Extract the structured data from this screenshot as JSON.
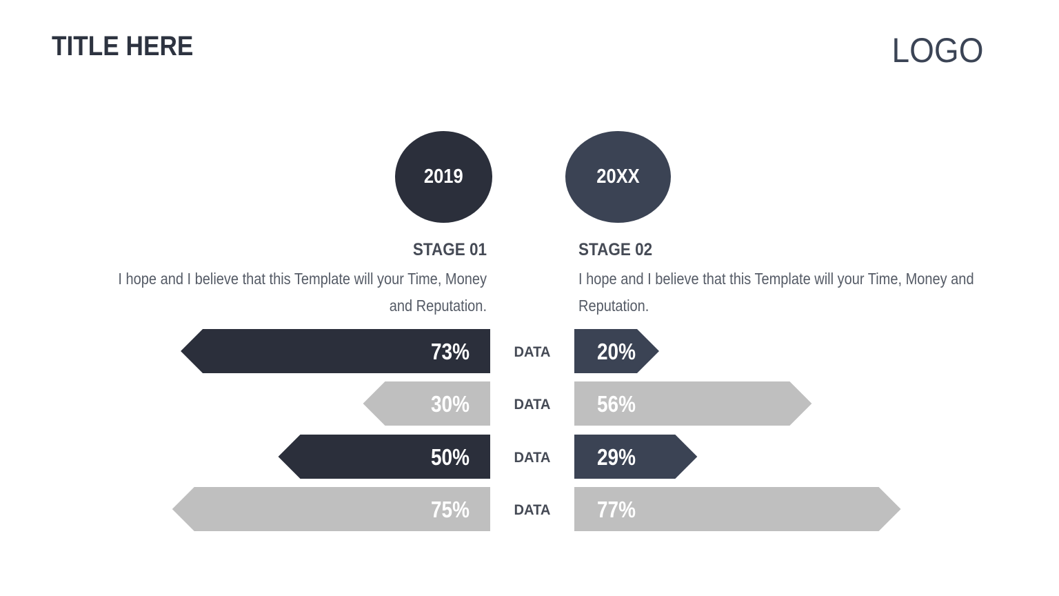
{
  "header": {
    "title": "TITLE HERE",
    "logo": "LOGO"
  },
  "stages": [
    {
      "year": "2019",
      "title": "STAGE 01",
      "description": "I hope and I believe that this Template will your Time, Money and Reputation."
    },
    {
      "year": "20XX",
      "title": "STAGE 02",
      "description": "I hope and I believe that this Template will your Time, Money and Reputation."
    }
  ],
  "colors": {
    "dark_left": "#2b2f3b",
    "dark_right": "#3b4354",
    "light": "#bfbfbf",
    "text": "#454a55"
  },
  "chart_data": {
    "type": "bar",
    "orientation": "horizontal-diverging",
    "categories": [
      "DATA",
      "DATA",
      "DATA",
      "DATA"
    ],
    "series": [
      {
        "values": [
          73,
          30,
          50,
          75
        ],
        "labels": [
          "73%",
          "30%",
          "50%",
          "75%"
        ]
      },
      {
        "values": [
          20,
          56,
          29,
          77
        ],
        "labels": [
          "20%",
          "56%",
          "29%",
          "77%"
        ]
      }
    ],
    "unit": "%"
  }
}
